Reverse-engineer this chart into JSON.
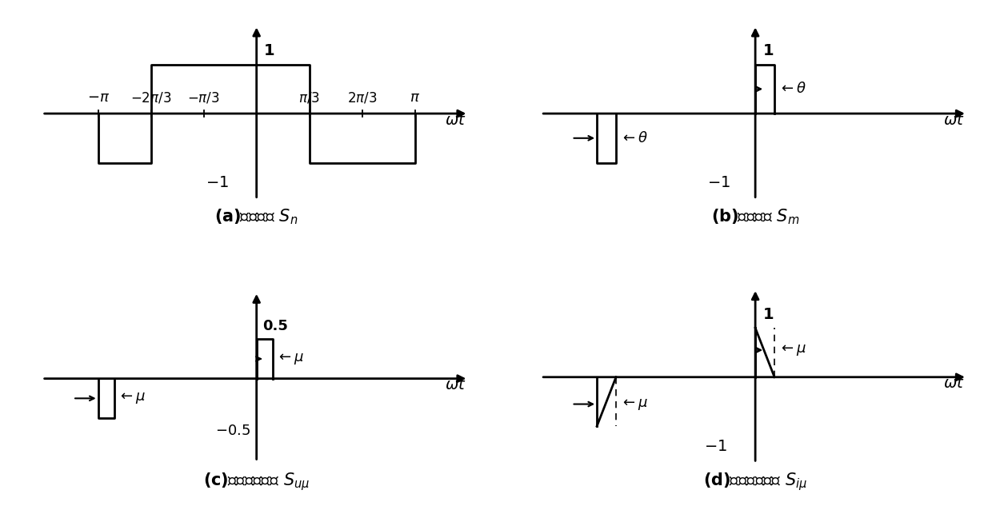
{
  "fig_width": 12.4,
  "fig_height": 6.33,
  "bg_color": "#ffffff",
  "lw": 2.0,
  "pi": 3.14159265358979,
  "a_xlim": [
    -4.3,
    4.3
  ],
  "a_ylim": [
    -1.8,
    1.9
  ],
  "b_xlim": [
    -4.3,
    4.3
  ],
  "b_ylim": [
    -1.8,
    1.9
  ],
  "b_theta": 0.38,
  "c_xlim": [
    -4.3,
    4.3
  ],
  "c_ylim": [
    -1.1,
    1.2
  ],
  "c_mu": 0.32,
  "d_xlim": [
    -4.3,
    4.3
  ],
  "d_ylim": [
    -1.8,
    1.9
  ],
  "d_mu": 0.38,
  "fontsize_label": 14,
  "fontsize_tick": 13,
  "fontsize_title": 15,
  "fontsize_annot": 13
}
